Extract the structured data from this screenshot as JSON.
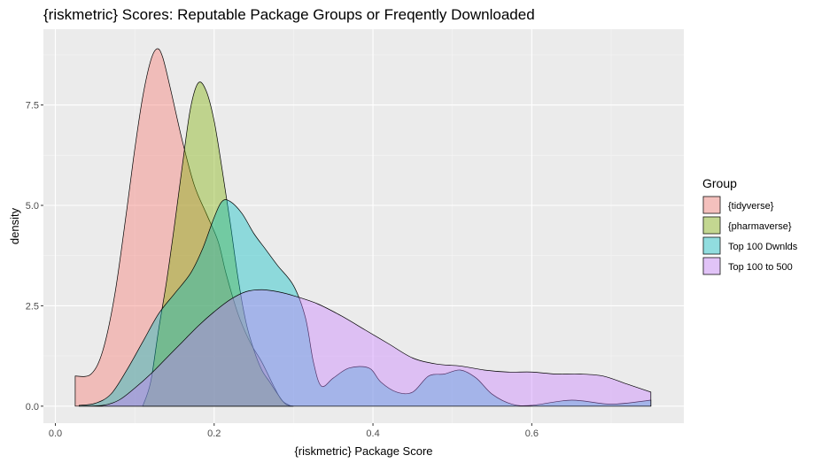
{
  "chart_data": {
    "type": "area",
    "subtype": "density",
    "title": "{riskmetric} Scores: Reputable Package Groups or Freqently Downloaded",
    "xlabel": "{riskmetric} Package Score",
    "ylabel": "density",
    "xlim": [
      0.0,
      0.75
    ],
    "ylim": [
      0,
      9.0
    ],
    "x_ticks": [
      0.0,
      0.2,
      0.4,
      0.6
    ],
    "x_tick_labels": [
      "0.0",
      "0.2",
      "0.4",
      "0.6"
    ],
    "y_ticks": [
      0.0,
      2.5,
      5.0,
      7.5
    ],
    "y_tick_labels": [
      "0.0",
      "2.5",
      "5.0",
      "7.5"
    ],
    "grid": true,
    "legend": {
      "title": "Group",
      "position": "right"
    },
    "series": [
      {
        "name": "{tidyverse}",
        "color": "#F8766D",
        "points": [
          [
            0.025,
            0.75
          ],
          [
            0.045,
            0.8
          ],
          [
            0.06,
            1.4
          ],
          [
            0.075,
            2.8
          ],
          [
            0.09,
            4.9
          ],
          [
            0.1,
            6.4
          ],
          [
            0.11,
            7.7
          ],
          [
            0.12,
            8.6
          ],
          [
            0.128,
            8.9
          ],
          [
            0.135,
            8.7
          ],
          [
            0.145,
            7.9
          ],
          [
            0.16,
            6.6
          ],
          [
            0.175,
            5.5
          ],
          [
            0.19,
            4.8
          ],
          [
            0.205,
            4.1
          ],
          [
            0.215,
            3.3
          ],
          [
            0.23,
            2.3
          ],
          [
            0.245,
            1.6
          ],
          [
            0.26,
            1.1
          ],
          [
            0.275,
            0.5
          ],
          [
            0.285,
            0.15
          ],
          [
            0.295,
            0.02
          ],
          [
            0.3,
            0.0
          ]
        ]
      },
      {
        "name": "{pharmaverse}",
        "color": "#7CAE00",
        "points": [
          [
            0.11,
            0.0
          ],
          [
            0.12,
            0.6
          ],
          [
            0.13,
            1.9
          ],
          [
            0.14,
            3.1
          ],
          [
            0.15,
            4.5
          ],
          [
            0.16,
            6.0
          ],
          [
            0.17,
            7.4
          ],
          [
            0.18,
            8.05
          ],
          [
            0.19,
            7.85
          ],
          [
            0.2,
            7.1
          ],
          [
            0.21,
            5.9
          ],
          [
            0.22,
            4.6
          ],
          [
            0.23,
            3.2
          ],
          [
            0.24,
            2.1
          ],
          [
            0.25,
            1.4
          ],
          [
            0.26,
            0.9
          ],
          [
            0.27,
            0.6
          ],
          [
            0.28,
            0.3
          ],
          [
            0.29,
            0.05
          ],
          [
            0.3,
            0.0
          ]
        ]
      },
      {
        "name": "Top 100 Dwnlds",
        "color": "#00BFC4",
        "points": [
          [
            0.03,
            0.02
          ],
          [
            0.05,
            0.07
          ],
          [
            0.07,
            0.3
          ],
          [
            0.09,
            0.9
          ],
          [
            0.11,
            1.6
          ],
          [
            0.13,
            2.3
          ],
          [
            0.15,
            2.8
          ],
          [
            0.17,
            3.3
          ],
          [
            0.185,
            3.9
          ],
          [
            0.2,
            4.7
          ],
          [
            0.21,
            5.1
          ],
          [
            0.22,
            5.1
          ],
          [
            0.235,
            4.8
          ],
          [
            0.25,
            4.3
          ],
          [
            0.265,
            3.9
          ],
          [
            0.28,
            3.5
          ],
          [
            0.3,
            3.0
          ],
          [
            0.315,
            2.2
          ],
          [
            0.325,
            1.1
          ],
          [
            0.335,
            0.5
          ],
          [
            0.35,
            0.7
          ],
          [
            0.37,
            0.95
          ],
          [
            0.395,
            0.95
          ],
          [
            0.41,
            0.6
          ],
          [
            0.43,
            0.35
          ],
          [
            0.45,
            0.35
          ],
          [
            0.47,
            0.75
          ],
          [
            0.49,
            0.8
          ],
          [
            0.51,
            0.9
          ],
          [
            0.53,
            0.7
          ],
          [
            0.55,
            0.3
          ],
          [
            0.575,
            0.05
          ],
          [
            0.6,
            0.02
          ],
          [
            0.65,
            0.15
          ],
          [
            0.7,
            0.05
          ],
          [
            0.75,
            0.15
          ]
        ]
      },
      {
        "name": "Top 100 to 500",
        "color": "#C77CFF",
        "points": [
          [
            0.03,
            0.0
          ],
          [
            0.06,
            0.02
          ],
          [
            0.08,
            0.15
          ],
          [
            0.1,
            0.45
          ],
          [
            0.12,
            0.8
          ],
          [
            0.14,
            1.2
          ],
          [
            0.16,
            1.6
          ],
          [
            0.18,
            2.0
          ],
          [
            0.2,
            2.35
          ],
          [
            0.22,
            2.65
          ],
          [
            0.24,
            2.85
          ],
          [
            0.26,
            2.9
          ],
          [
            0.28,
            2.85
          ],
          [
            0.3,
            2.75
          ],
          [
            0.33,
            2.55
          ],
          [
            0.36,
            2.25
          ],
          [
            0.39,
            1.9
          ],
          [
            0.42,
            1.55
          ],
          [
            0.45,
            1.2
          ],
          [
            0.48,
            1.05
          ],
          [
            0.51,
            1.0
          ],
          [
            0.54,
            0.9
          ],
          [
            0.57,
            0.85
          ],
          [
            0.6,
            0.85
          ],
          [
            0.63,
            0.8
          ],
          [
            0.66,
            0.8
          ],
          [
            0.69,
            0.75
          ],
          [
            0.72,
            0.55
          ],
          [
            0.75,
            0.35
          ]
        ]
      }
    ]
  }
}
